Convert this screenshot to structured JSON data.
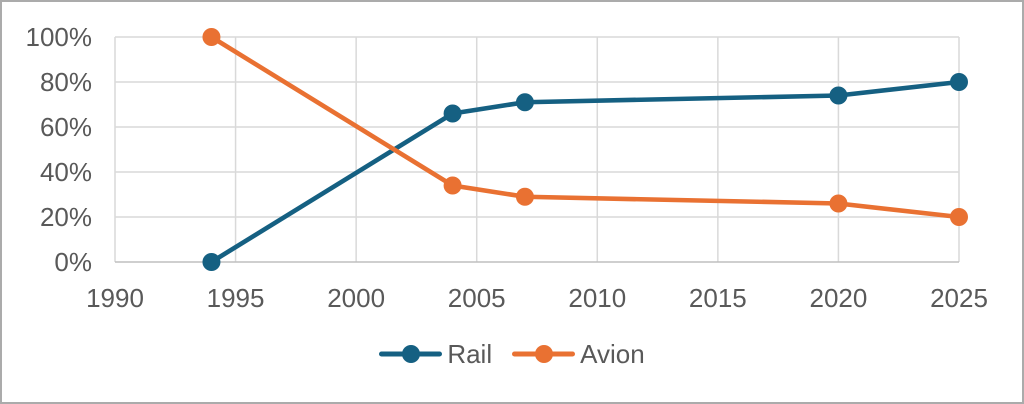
{
  "chart_data": {
    "type": "line",
    "title": "",
    "x_axis": {
      "ticks": [
        1990,
        1995,
        2000,
        2005,
        2010,
        2015,
        2020,
        2025
      ],
      "range": [
        1990,
        2025
      ],
      "tick_suffix": ""
    },
    "y_axis": {
      "ticks": [
        0,
        20,
        40,
        60,
        80,
        100
      ],
      "range": [
        0,
        100
      ],
      "tick_suffix": "%"
    },
    "x": [
      1994,
      2004,
      2007,
      2020,
      2025
    ],
    "series": [
      {
        "name": "Rail",
        "color": "#156082",
        "values": [
          0,
          66,
          71,
          74,
          80
        ]
      },
      {
        "name": "Avion",
        "color": "#E97132",
        "values": [
          100,
          34,
          29,
          26,
          20
        ]
      }
    ],
    "grid": true,
    "legend_position": "bottom",
    "style": {
      "text_color": "#595959",
      "gridline_color": "#D9D9D9",
      "axis_line_color": "#BFBFBF",
      "background": "#FFFFFF",
      "frame_border_color": "#ABABAB"
    }
  }
}
